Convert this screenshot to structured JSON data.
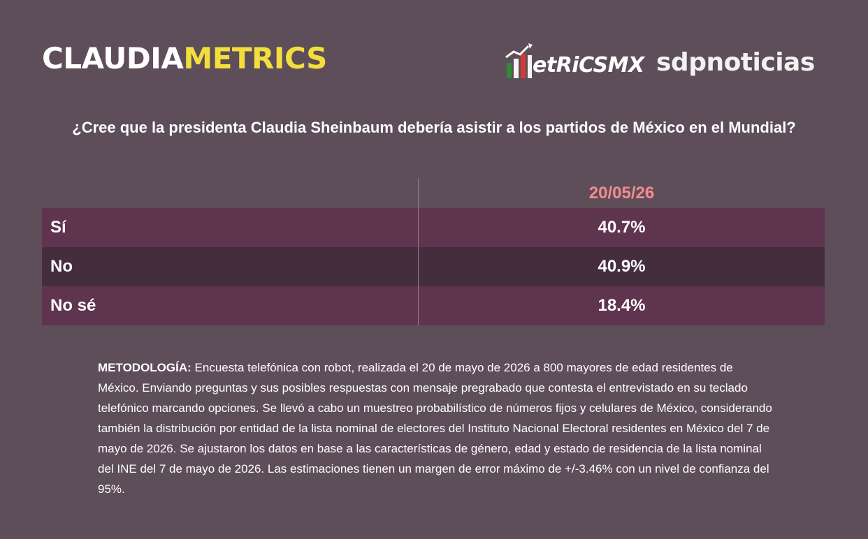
{
  "brand": {
    "claudia": "CLAUDIA",
    "metrics": "METRICS",
    "partner1": "etRiCSMX",
    "partner2": "sdpnoticias"
  },
  "colors": {
    "background": "#5e4e59",
    "row_light": "#5e344e",
    "row_dark": "#442e3e",
    "date_accent": "#f48c8c",
    "brand_yellow": "#f3df3c"
  },
  "question": "¿Cree que la presidenta Claudia Sheinbaum debería asistir a los partidos de México en el Mundial?",
  "chart_data": {
    "type": "table",
    "columns": [
      "20/05/26"
    ],
    "rows": [
      {
        "label": "Sí",
        "value": "40.7%"
      },
      {
        "label": "No",
        "value": "40.9%"
      },
      {
        "label": "No sé",
        "value": "18.4%"
      }
    ],
    "values": [
      40.7,
      40.9,
      18.4
    ]
  },
  "methodology": {
    "title": "METODOLOGÍA:",
    "text": " Encuesta telefónica con robot, realizada el 20 de mayo de 2026 a 800 mayores de edad residentes de México. Enviando preguntas y sus posibles respuestas con mensaje pregrabado que contesta el entrevistado en su teclado telefónico marcando opciones. Se llevó a cabo un muestreo probabilístico de números fijos y celulares de México, considerando también la distribución por entidad de la lista nominal de electores del Instituto Nacional Electoral residentes en México del 7 de mayo de 2026. Se ajustaron los datos en base a las características de género, edad y estado de residencia de la lista nominal del INE del 7 de mayo de 2026. Las estimaciones tienen un margen de error máximo de +/-3.46% con un nivel de confianza del 95%."
  }
}
